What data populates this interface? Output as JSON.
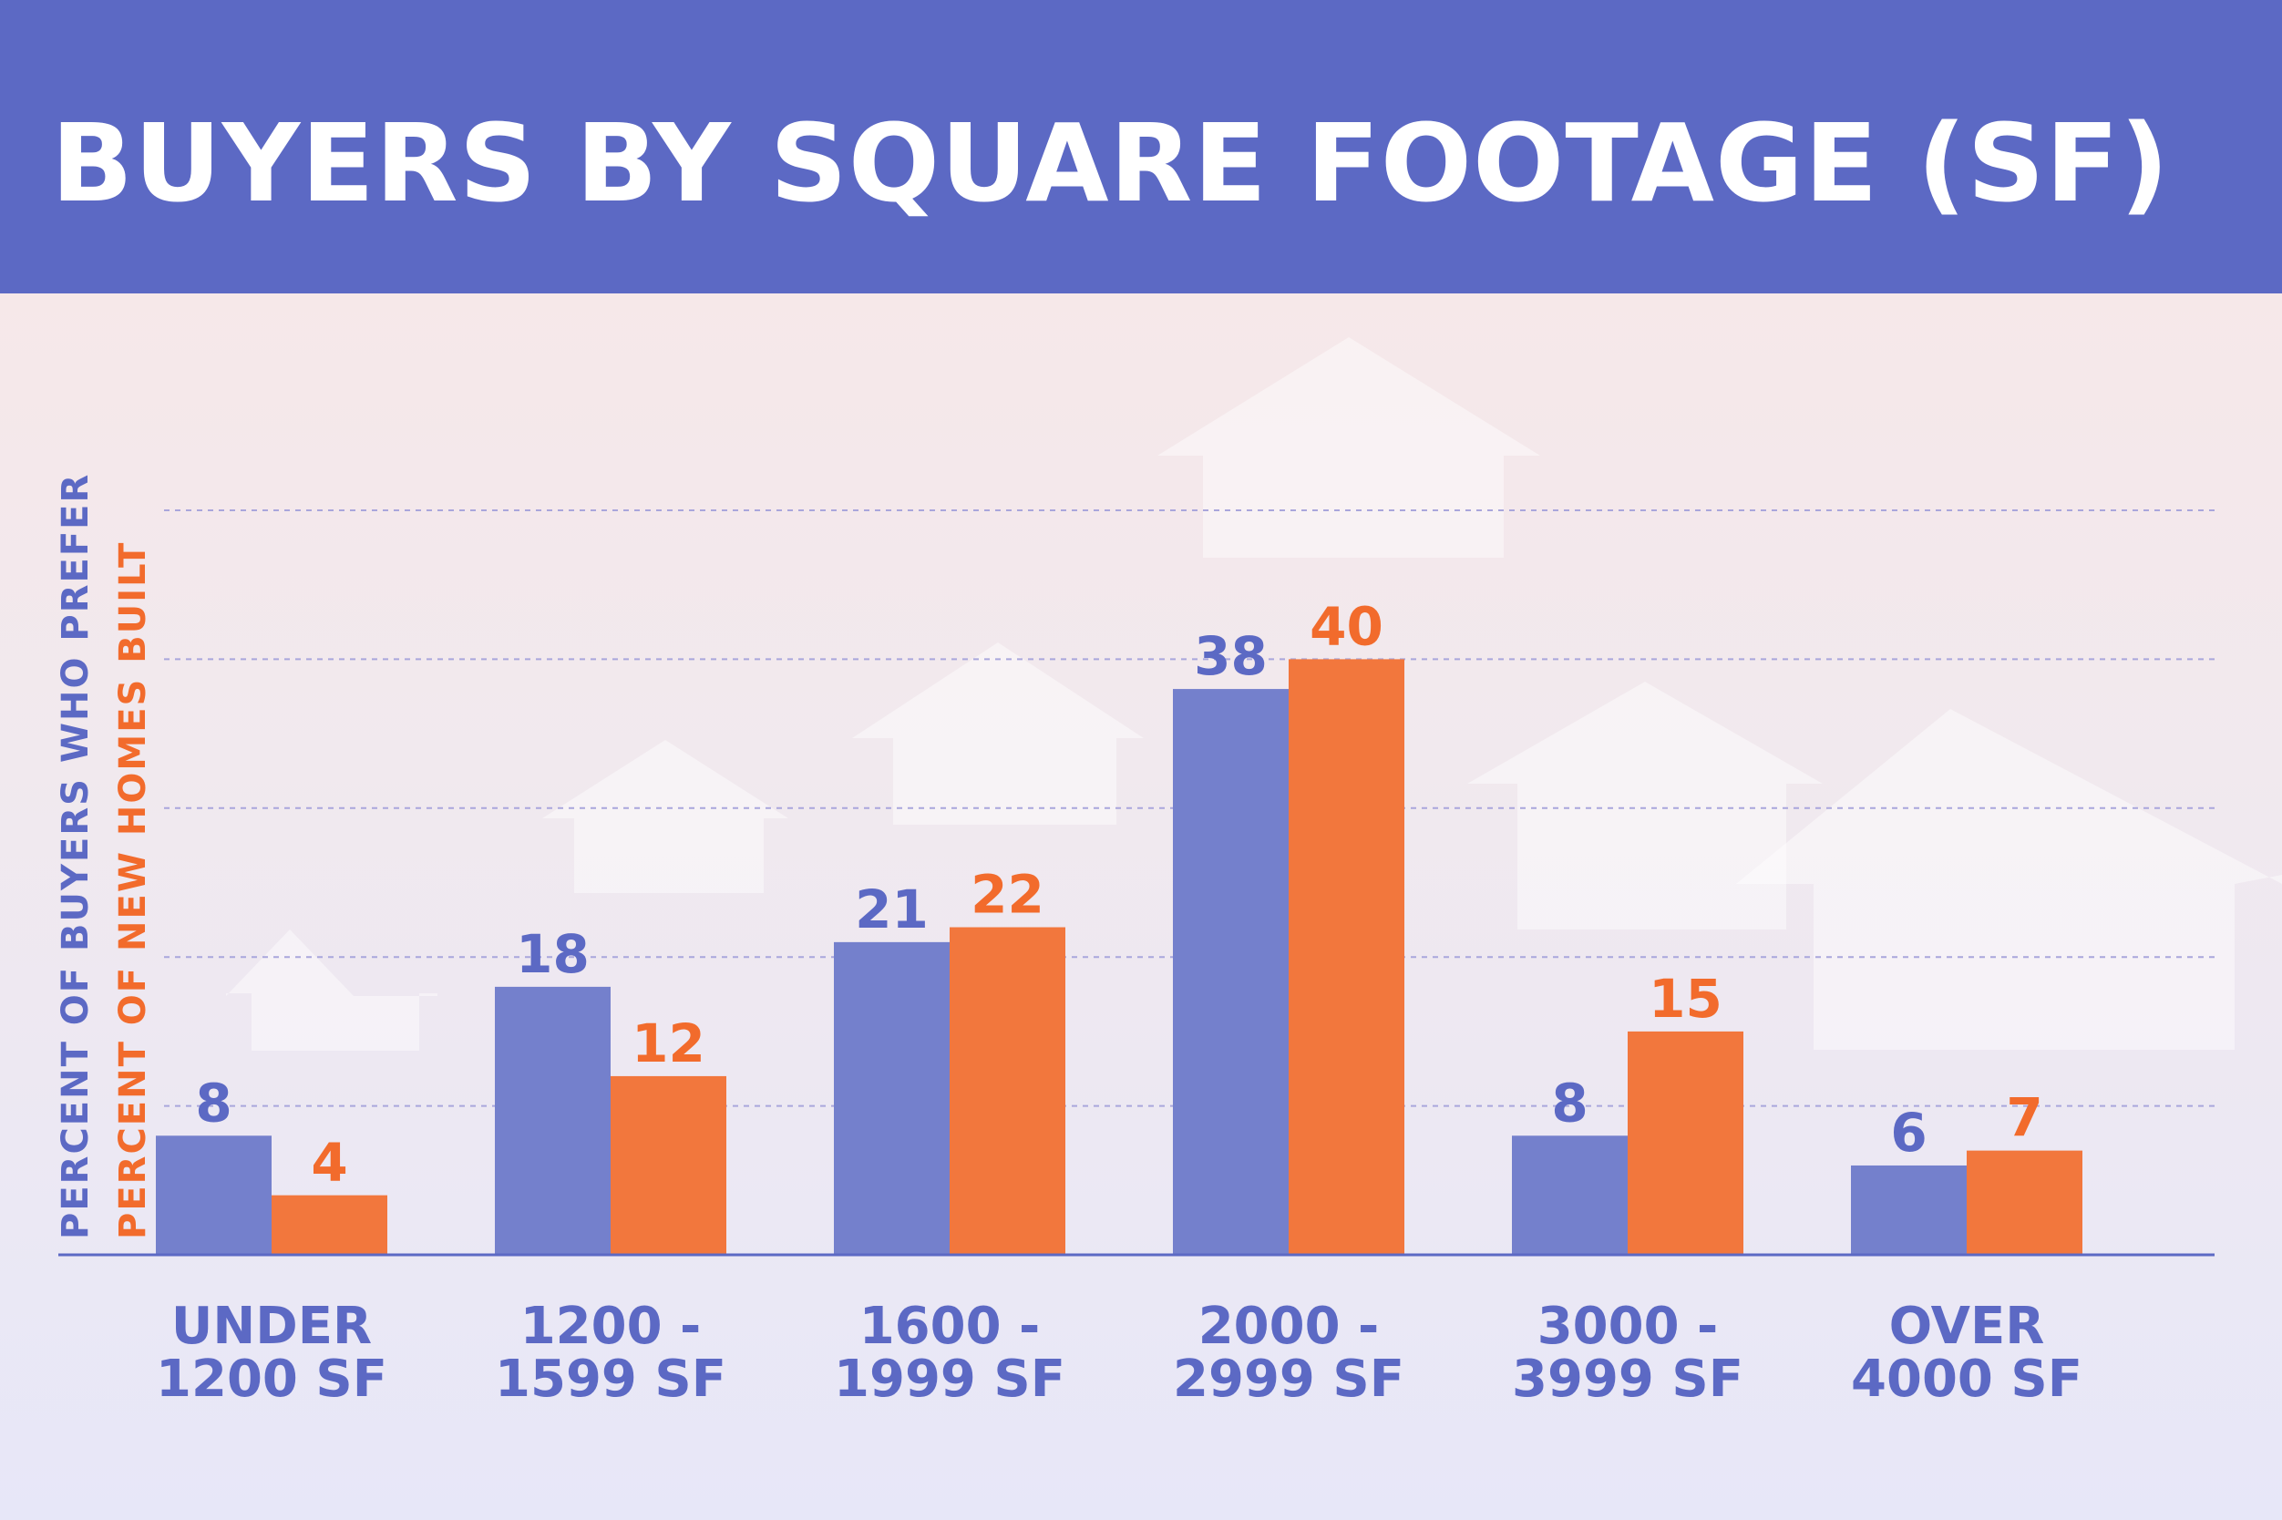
{
  "title": "BUYERS BY SQUARE FOOTAGE (SF)",
  "colors": {
    "header_bg": "#5c69c4",
    "buyers": "#7480cc",
    "buyers_text": "#5c69c4",
    "homes": "#f2773d",
    "homes_text": "#f26b2c",
    "grid": "#a9a6dc",
    "axis": "#5c69c4"
  },
  "chart_data": {
    "type": "bar",
    "title": "BUYERS BY SQUARE FOOTAGE (SF)",
    "categories": [
      [
        "UNDER",
        "1200 SF"
      ],
      [
        "1200 -",
        "1599 SF"
      ],
      [
        "1600 -",
        "1999 SF"
      ],
      [
        "2000 -",
        "2999 SF"
      ],
      [
        "3000 -",
        "3999 SF"
      ],
      [
        "OVER",
        "4000 SF"
      ]
    ],
    "ylabel": [
      "PERCENT OF BUYERS WHO PREFER",
      "PERCENT OF NEW HOMES BUILT"
    ],
    "series": [
      {
        "name": "PERCENT OF BUYERS WHO PREFER",
        "values": [
          8,
          18,
          21,
          38,
          8,
          6
        ]
      },
      {
        "name": "PERCENT OF NEW HOMES BUILT",
        "values": [
          4,
          12,
          22,
          40,
          15,
          7
        ]
      }
    ],
    "ylim": [
      0,
      50
    ],
    "grid": true,
    "legend": "none"
  }
}
